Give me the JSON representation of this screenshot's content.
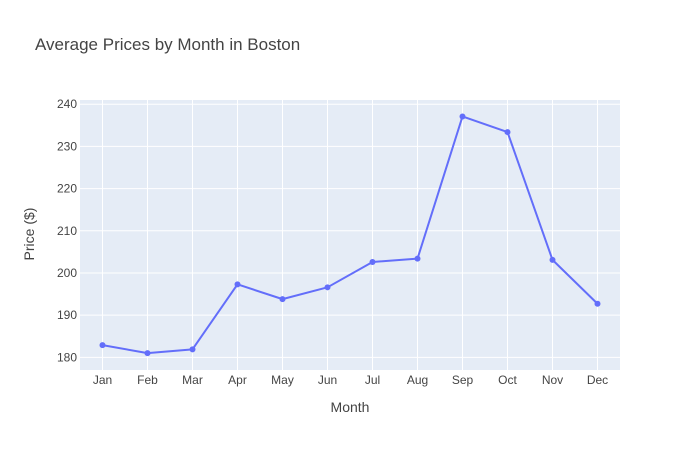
{
  "chart_data": {
    "type": "line",
    "title": "Average Prices by Month in Boston",
    "xlabel": "Month",
    "ylabel": "Price ($)",
    "categories": [
      "Jan",
      "Feb",
      "Mar",
      "Apr",
      "May",
      "Jun",
      "Jul",
      "Aug",
      "Sep",
      "Oct",
      "Nov",
      "Dec"
    ],
    "series": [
      {
        "values": [
          182.9,
          181.0,
          181.9,
          197.3,
          193.8,
          196.6,
          202.6,
          203.4,
          237.1,
          233.4,
          203.1,
          192.7
        ]
      }
    ],
    "ylim": [
      177,
      241
    ],
    "yticks": [
      180,
      190,
      200,
      210,
      220,
      230,
      240
    ],
    "grid": true,
    "legend": "none",
    "colors": {
      "line": "#636efa",
      "plot_background": "#e5ecf6",
      "grid": "#ffffff"
    },
    "markers": true
  }
}
